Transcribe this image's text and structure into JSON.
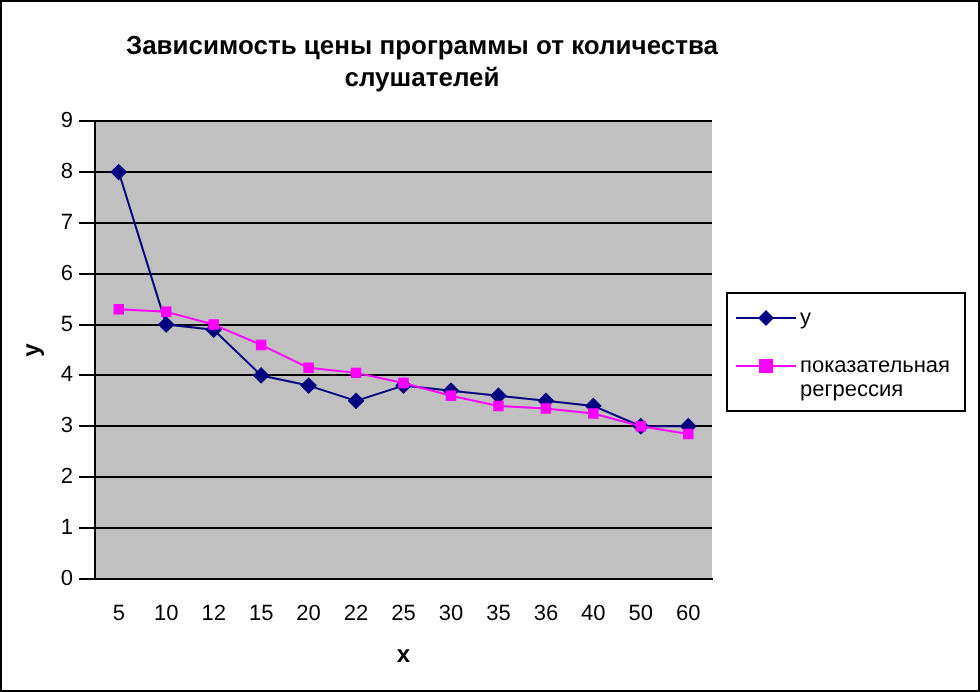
{
  "chart_data": {
    "type": "line",
    "title": "Зависимость цены программы от количества слушателей",
    "xlabel": "x",
    "ylabel": "y",
    "categories": [
      "5",
      "10",
      "12",
      "15",
      "20",
      "22",
      "25",
      "30",
      "35",
      "36",
      "40",
      "50",
      "60"
    ],
    "series": [
      {
        "name": "y",
        "color": "#000080",
        "marker": "diamond",
        "values": [
          8,
          5,
          4.9,
          4,
          3.8,
          3.5,
          3.8,
          3.7,
          3.6,
          3.5,
          3.4,
          3,
          3
        ]
      },
      {
        "name": "показательная регрессия",
        "color": "#ff00ff",
        "marker": "square",
        "values": [
          5.3,
          5.25,
          5.0,
          4.6,
          4.15,
          4.05,
          3.85,
          3.6,
          3.4,
          3.35,
          3.25,
          3.0,
          2.85
        ]
      }
    ],
    "ylim": [
      0,
      9
    ],
    "yticks": [
      0,
      1,
      2,
      3,
      4,
      5,
      6,
      7,
      8,
      9
    ],
    "grid": "y",
    "legend": "right",
    "line_style": "solid"
  }
}
